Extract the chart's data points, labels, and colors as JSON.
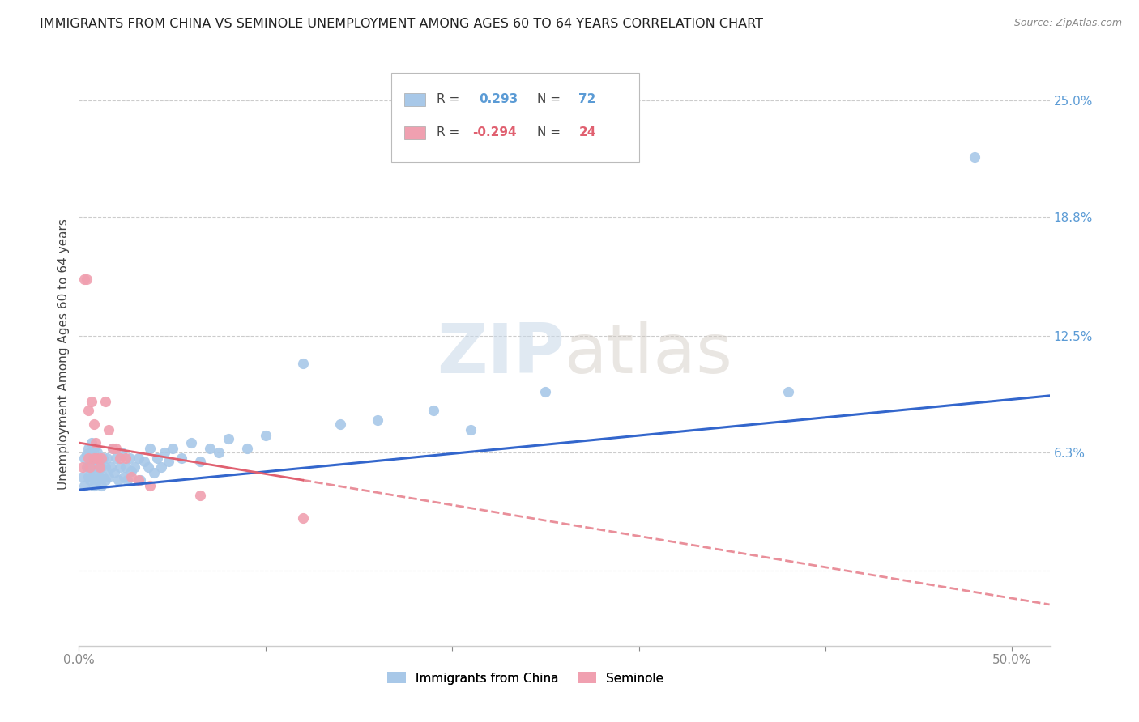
{
  "title": "IMMIGRANTS FROM CHINA VS SEMINOLE UNEMPLOYMENT AMONG AGES 60 TO 64 YEARS CORRELATION CHART",
  "source": "Source: ZipAtlas.com",
  "ylabel": "Unemployment Among Ages 60 to 64 years",
  "ytick_values": [
    0.0,
    0.063,
    0.125,
    0.188,
    0.25
  ],
  "ytick_labels": [
    "",
    "6.3%",
    "12.5%",
    "18.8%",
    "25.0%"
  ],
  "xlim": [
    0.0,
    0.52
  ],
  "ylim": [
    -0.04,
    0.27
  ],
  "legend1_label": "Immigrants from China",
  "legend2_label": "Seminole",
  "R1": "0.293",
  "N1": "72",
  "R2": "-0.294",
  "N2": "24",
  "color_blue": "#a8c8e8",
  "color_pink": "#f0a0b0",
  "line_color_blue": "#3366cc",
  "line_color_pink": "#e06070",
  "watermark_zip": "ZIP",
  "watermark_atlas": "atlas",
  "blue_line_x0": 0.0,
  "blue_line_x1": 0.52,
  "blue_line_y0": 0.043,
  "blue_line_y1": 0.093,
  "pink_line_x0": 0.0,
  "pink_line_x1": 0.52,
  "pink_line_y0": 0.068,
  "pink_line_y1": -0.018,
  "blue_x": [
    0.002,
    0.003,
    0.003,
    0.004,
    0.004,
    0.005,
    0.005,
    0.005,
    0.006,
    0.006,
    0.006,
    0.007,
    0.007,
    0.007,
    0.008,
    0.008,
    0.008,
    0.009,
    0.009,
    0.01,
    0.01,
    0.01,
    0.011,
    0.011,
    0.012,
    0.012,
    0.013,
    0.013,
    0.014,
    0.014,
    0.015,
    0.016,
    0.017,
    0.018,
    0.019,
    0.02,
    0.021,
    0.022,
    0.023,
    0.024,
    0.025,
    0.026,
    0.027,
    0.028,
    0.03,
    0.032,
    0.033,
    0.035,
    0.037,
    0.038,
    0.04,
    0.042,
    0.044,
    0.046,
    0.048,
    0.05,
    0.055,
    0.06,
    0.065,
    0.07,
    0.075,
    0.08,
    0.09,
    0.1,
    0.12,
    0.14,
    0.16,
    0.19,
    0.21,
    0.25,
    0.38,
    0.48
  ],
  "blue_y": [
    0.05,
    0.045,
    0.06,
    0.055,
    0.062,
    0.05,
    0.055,
    0.065,
    0.048,
    0.055,
    0.063,
    0.05,
    0.058,
    0.068,
    0.045,
    0.055,
    0.065,
    0.052,
    0.06,
    0.048,
    0.055,
    0.063,
    0.05,
    0.058,
    0.045,
    0.055,
    0.05,
    0.06,
    0.048,
    0.055,
    0.06,
    0.05,
    0.055,
    0.065,
    0.052,
    0.06,
    0.048,
    0.055,
    0.063,
    0.05,
    0.055,
    0.048,
    0.06,
    0.053,
    0.055,
    0.06,
    0.048,
    0.058,
    0.055,
    0.065,
    0.052,
    0.06,
    0.055,
    0.063,
    0.058,
    0.065,
    0.06,
    0.068,
    0.058,
    0.065,
    0.063,
    0.07,
    0.065,
    0.072,
    0.11,
    0.078,
    0.08,
    0.085,
    0.075,
    0.095,
    0.095,
    0.22
  ],
  "pink_x": [
    0.002,
    0.003,
    0.004,
    0.005,
    0.005,
    0.006,
    0.007,
    0.008,
    0.008,
    0.009,
    0.01,
    0.011,
    0.012,
    0.014,
    0.016,
    0.018,
    0.02,
    0.022,
    0.025,
    0.028,
    0.032,
    0.038,
    0.065,
    0.12
  ],
  "pink_y": [
    0.055,
    0.155,
    0.155,
    0.06,
    0.085,
    0.055,
    0.09,
    0.06,
    0.078,
    0.068,
    0.06,
    0.055,
    0.06,
    0.09,
    0.075,
    0.065,
    0.065,
    0.06,
    0.06,
    0.05,
    0.048,
    0.045,
    0.04,
    0.028
  ]
}
